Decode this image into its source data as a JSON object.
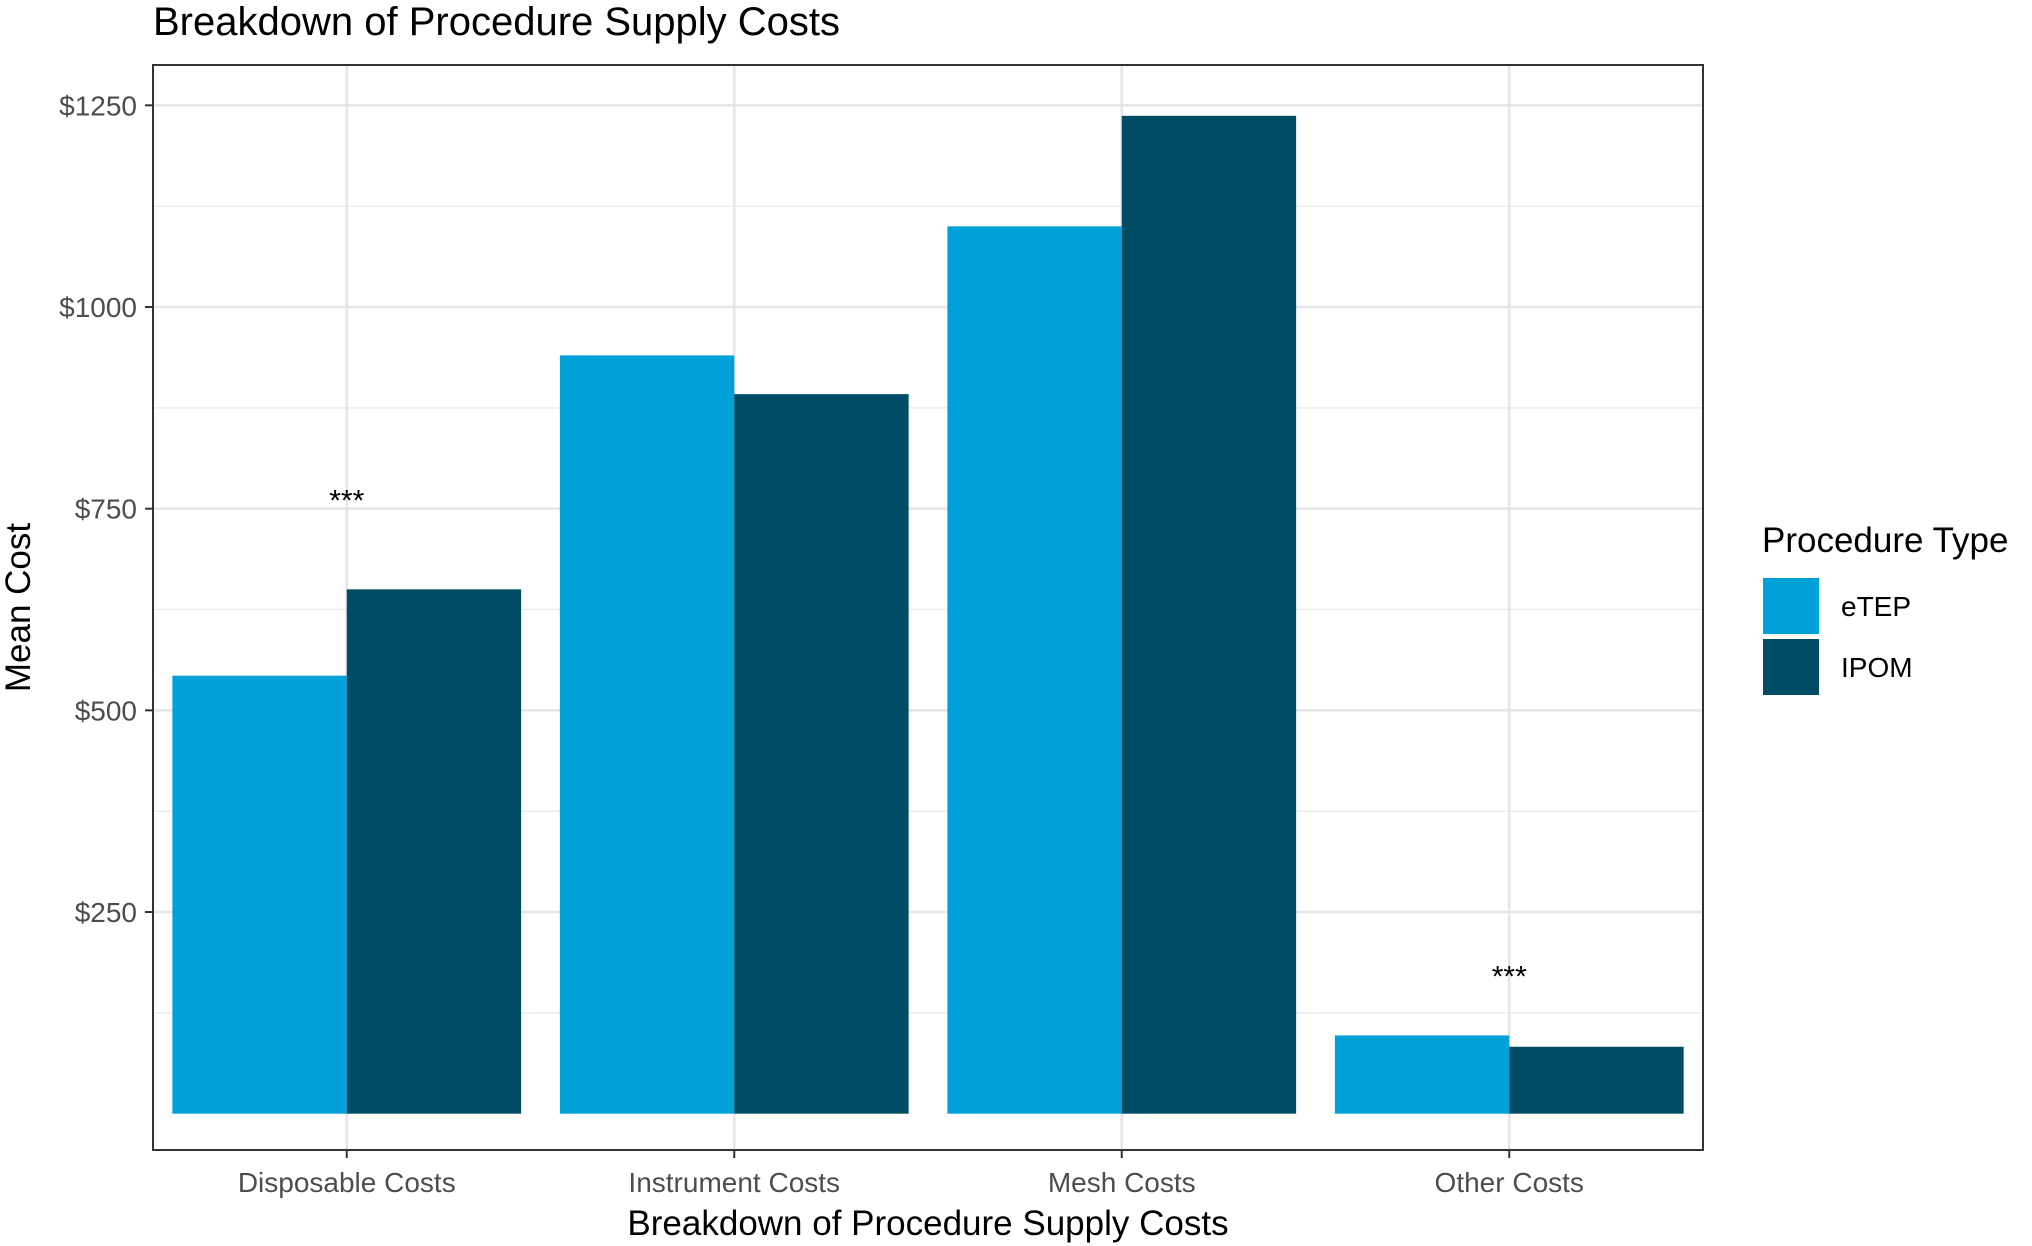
{
  "chart_data": {
    "type": "bar",
    "title": "Breakdown of Procedure Supply Costs",
    "xlabel": "Breakdown of Procedure Supply Costs",
    "ylabel": "Mean Cost",
    "categories": [
      "Disposable Costs",
      "Instrument Costs",
      "Mesh Costs",
      "Other Costs"
    ],
    "series": [
      {
        "name": "eTEP",
        "color": "#00a0d8",
        "values": [
          543,
          940,
          1100,
          97
        ]
      },
      {
        "name": "IPOM",
        "color": "#004c64",
        "values": [
          650,
          892,
          1237,
          83
        ]
      }
    ],
    "ylim": [
      -45,
      1300
    ],
    "yticks": [
      250,
      500,
      750,
      1000,
      1250
    ],
    "ytick_labels": [
      "$250",
      "$500",
      "$750",
      "$1000",
      "$1250"
    ],
    "annotations": [
      {
        "category": "Disposable Costs",
        "text": "***",
        "y": 770
      },
      {
        "category": "Other Costs",
        "text": "***",
        "y": 180
      }
    ],
    "legend": {
      "title": "Procedure Type",
      "position": "right"
    },
    "grid": true,
    "theme": "bw"
  }
}
